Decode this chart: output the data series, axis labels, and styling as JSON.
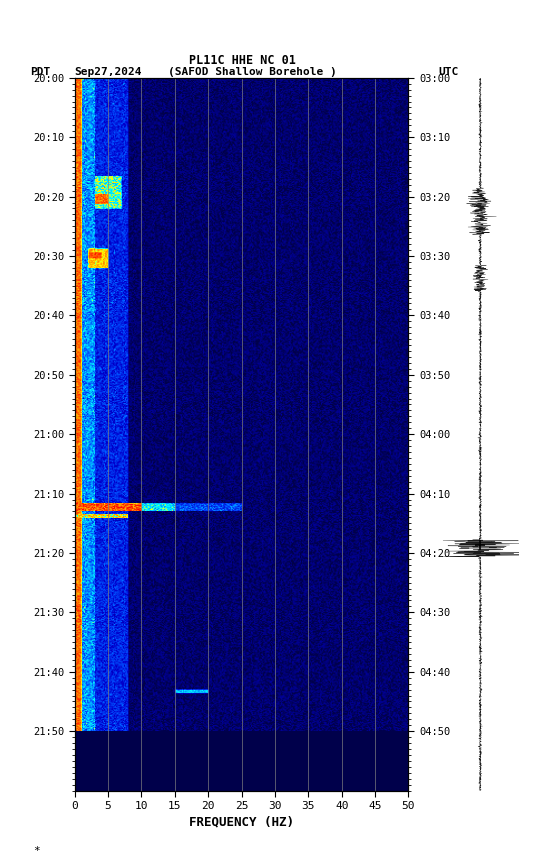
{
  "title_line1": "PL11C HHE NC 01",
  "title_line2_left": "PDT   Sep27,2024      (SAFOD Shallow Borehole )",
  "title_line2_right": "UTC",
  "xlabel": "FREQUENCY (HZ)",
  "xlim": [
    0,
    50
  ],
  "freq_ticks": [
    0,
    5,
    10,
    15,
    20,
    25,
    30,
    35,
    40,
    45,
    50
  ],
  "vertical_grid_lines": [
    5,
    10,
    15,
    20,
    25,
    30,
    35,
    40,
    45
  ],
  "pdt_yticks": [
    "20:00",
    "20:10",
    "20:20",
    "20:30",
    "20:40",
    "20:50",
    "21:00",
    "21:10",
    "21:20",
    "21:30",
    "21:40",
    "21:50"
  ],
  "utc_yticks": [
    "03:00",
    "03:10",
    "03:20",
    "03:30",
    "03:40",
    "03:50",
    "04:00",
    "04:10",
    "04:20",
    "04:30",
    "04:40",
    "04:50"
  ],
  "fig_bg": "#ffffff",
  "spec_bg": "#00008B",
  "n_time": 660,
  "n_freq": 300
}
